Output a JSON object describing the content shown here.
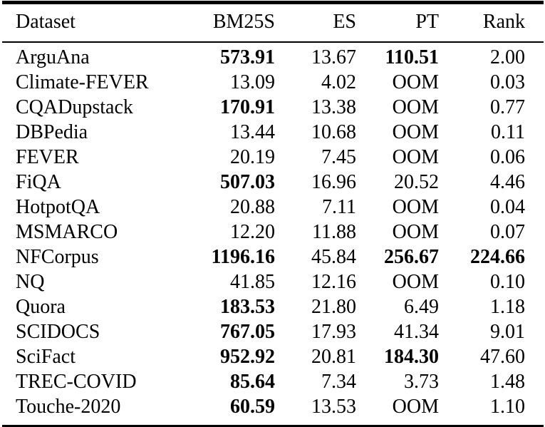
{
  "colors": {
    "text": "#000000",
    "background": "#ffffff",
    "rule": "#000000"
  },
  "table": {
    "columns": [
      {
        "key": "dataset",
        "label": "Dataset",
        "align": "left"
      },
      {
        "key": "bm25s",
        "label": "BM25S",
        "align": "right"
      },
      {
        "key": "es",
        "label": "ES",
        "align": "right"
      },
      {
        "key": "pt",
        "label": "PT",
        "align": "right"
      },
      {
        "key": "rank",
        "label": "Rank",
        "align": "right"
      }
    ],
    "rows": [
      {
        "dataset": "ArguAna",
        "cells": [
          {
            "text": "573.91",
            "bold": true
          },
          {
            "text": "13.67",
            "bold": false
          },
          {
            "text": "110.51",
            "bold": true
          },
          {
            "text": "2.00",
            "bold": false
          }
        ]
      },
      {
        "dataset": "Climate-FEVER",
        "cells": [
          {
            "text": "13.09",
            "bold": false
          },
          {
            "text": "4.02",
            "bold": false
          },
          {
            "text": "OOM",
            "bold": false
          },
          {
            "text": "0.03",
            "bold": false
          }
        ]
      },
      {
        "dataset": "CQADupstack",
        "cells": [
          {
            "text": "170.91",
            "bold": true
          },
          {
            "text": "13.38",
            "bold": false
          },
          {
            "text": "OOM",
            "bold": false
          },
          {
            "text": "0.77",
            "bold": false
          }
        ]
      },
      {
        "dataset": "DBPedia",
        "cells": [
          {
            "text": "13.44",
            "bold": false
          },
          {
            "text": "10.68",
            "bold": false
          },
          {
            "text": "OOM",
            "bold": false
          },
          {
            "text": "0.11",
            "bold": false
          }
        ]
      },
      {
        "dataset": "FEVER",
        "cells": [
          {
            "text": "20.19",
            "bold": false
          },
          {
            "text": "7.45",
            "bold": false
          },
          {
            "text": "OOM",
            "bold": false
          },
          {
            "text": "0.06",
            "bold": false
          }
        ]
      },
      {
        "dataset": "FiQA",
        "cells": [
          {
            "text": "507.03",
            "bold": true
          },
          {
            "text": "16.96",
            "bold": false
          },
          {
            "text": "20.52",
            "bold": false
          },
          {
            "text": "4.46",
            "bold": false
          }
        ]
      },
      {
        "dataset": "HotpotQA",
        "cells": [
          {
            "text": "20.88",
            "bold": false
          },
          {
            "text": "7.11",
            "bold": false
          },
          {
            "text": "OOM",
            "bold": false
          },
          {
            "text": "0.04",
            "bold": false
          }
        ]
      },
      {
        "dataset": "MSMARCO",
        "cells": [
          {
            "text": "12.20",
            "bold": false
          },
          {
            "text": "11.88",
            "bold": false
          },
          {
            "text": "OOM",
            "bold": false
          },
          {
            "text": "0.07",
            "bold": false
          }
        ]
      },
      {
        "dataset": "NFCorpus",
        "cells": [
          {
            "text": "1196.16",
            "bold": true
          },
          {
            "text": "45.84",
            "bold": false
          },
          {
            "text": "256.67",
            "bold": true
          },
          {
            "text": "224.66",
            "bold": true
          }
        ]
      },
      {
        "dataset": "NQ",
        "cells": [
          {
            "text": "41.85",
            "bold": false
          },
          {
            "text": "12.16",
            "bold": false
          },
          {
            "text": "OOM",
            "bold": false
          },
          {
            "text": "0.10",
            "bold": false
          }
        ]
      },
      {
        "dataset": "Quora",
        "cells": [
          {
            "text": "183.53",
            "bold": true
          },
          {
            "text": "21.80",
            "bold": false
          },
          {
            "text": "6.49",
            "bold": false
          },
          {
            "text": "1.18",
            "bold": false
          }
        ]
      },
      {
        "dataset": "SCIDOCS",
        "cells": [
          {
            "text": "767.05",
            "bold": true
          },
          {
            "text": "17.93",
            "bold": false
          },
          {
            "text": "41.34",
            "bold": false
          },
          {
            "text": "9.01",
            "bold": false
          }
        ]
      },
      {
        "dataset": "SciFact",
        "cells": [
          {
            "text": "952.92",
            "bold": true
          },
          {
            "text": "20.81",
            "bold": false
          },
          {
            "text": "184.30",
            "bold": true
          },
          {
            "text": "47.60",
            "bold": false
          }
        ]
      },
      {
        "dataset": "TREC-COVID",
        "cells": [
          {
            "text": "85.64",
            "bold": true
          },
          {
            "text": "7.34",
            "bold": false
          },
          {
            "text": "3.73",
            "bold": false
          },
          {
            "text": "1.48",
            "bold": false
          }
        ]
      },
      {
        "dataset": "Touche-2020",
        "cells": [
          {
            "text": "60.59",
            "bold": true
          },
          {
            "text": "13.53",
            "bold": false
          },
          {
            "text": "OOM",
            "bold": false
          },
          {
            "text": "1.10",
            "bold": false
          }
        ]
      }
    ]
  }
}
